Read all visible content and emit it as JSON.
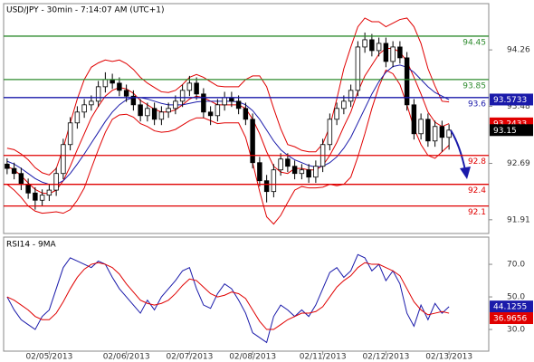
{
  "chart_data": [
    {
      "type": "candlestick",
      "title": "USD/JPY - 30min - 7:14:07 AM (UTC+1)",
      "categories": [
        null,
        null,
        null,
        null,
        null,
        null,
        "02/05/2013",
        null,
        null,
        null,
        null,
        null,
        null,
        null,
        null,
        null,
        null,
        "02/06/2013",
        null,
        null,
        null,
        null,
        null,
        null,
        null,
        null,
        "02/07/2013",
        null,
        null,
        null,
        null,
        null,
        null,
        null,
        null,
        "02/08/2013",
        null,
        null,
        null,
        null,
        null,
        null,
        null,
        null,
        null,
        "02/11/2013",
        null,
        null,
        null,
        null,
        null,
        null,
        null,
        null,
        "02/12/2013",
        null,
        null,
        null,
        null,
        null,
        null,
        null,
        null,
        "02/13/2013"
      ],
      "open": [
        92.68,
        92.62,
        92.55,
        92.4,
        92.28,
        92.18,
        92.25,
        92.32,
        92.55,
        92.95,
        93.25,
        93.4,
        93.5,
        93.55,
        93.75,
        93.85,
        93.8,
        93.7,
        93.62,
        93.5,
        93.35,
        93.45,
        93.3,
        93.4,
        93.45,
        93.55,
        93.7,
        93.8,
        93.65,
        93.4,
        93.35,
        93.5,
        93.6,
        93.55,
        93.45,
        93.3,
        92.7,
        92.45,
        92.3,
        92.6,
        92.75,
        92.65,
        92.55,
        92.6,
        92.5,
        92.65,
        92.95,
        93.3,
        93.45,
        93.55,
        93.7,
        94.3,
        94.4,
        94.25,
        94.35,
        94.1,
        94.3,
        94.15,
        93.5,
        93.1,
        93.3,
        93.0,
        93.2,
        93.05
      ],
      "high": [
        92.76,
        92.7,
        92.63,
        92.48,
        92.36,
        92.33,
        92.4,
        92.63,
        93.03,
        93.33,
        93.48,
        93.58,
        93.63,
        93.83,
        93.95,
        93.93,
        93.88,
        93.78,
        93.7,
        93.58,
        93.53,
        93.53,
        93.48,
        93.53,
        93.63,
        93.78,
        93.9,
        93.88,
        93.73,
        93.48,
        93.58,
        93.68,
        93.68,
        93.63,
        93.53,
        93.38,
        92.78,
        92.53,
        92.68,
        92.83,
        92.83,
        92.73,
        92.68,
        92.68,
        92.73,
        93.03,
        93.38,
        93.53,
        93.63,
        93.78,
        94.38,
        94.5,
        94.48,
        94.43,
        94.43,
        94.38,
        94.38,
        94.23,
        93.58,
        93.38,
        93.38,
        93.28,
        93.28,
        93.23
      ],
      "low": [
        92.54,
        92.47,
        92.32,
        92.2,
        92.05,
        92.1,
        92.17,
        92.24,
        92.47,
        92.87,
        93.17,
        93.32,
        93.42,
        93.47,
        93.67,
        93.72,
        93.62,
        93.54,
        93.42,
        93.27,
        93.27,
        93.22,
        93.22,
        93.32,
        93.37,
        93.47,
        93.62,
        93.57,
        93.32,
        93.22,
        93.27,
        93.42,
        93.47,
        93.37,
        93.22,
        92.62,
        92.37,
        92.15,
        92.22,
        92.52,
        92.57,
        92.47,
        92.47,
        92.42,
        92.42,
        92.57,
        92.87,
        93.22,
        93.37,
        93.47,
        93.62,
        94.22,
        94.17,
        94.17,
        94.02,
        94.02,
        94.07,
        93.42,
        93.02,
        93.02,
        92.92,
        92.92,
        92.85,
        92.88
      ],
      "close": [
        92.62,
        92.55,
        92.4,
        92.28,
        92.18,
        92.25,
        92.32,
        92.55,
        92.95,
        93.25,
        93.4,
        93.5,
        93.55,
        93.75,
        93.85,
        93.8,
        93.7,
        93.62,
        93.5,
        93.35,
        93.45,
        93.3,
        93.4,
        93.45,
        93.55,
        93.7,
        93.8,
        93.65,
        93.4,
        93.35,
        93.5,
        93.6,
        93.55,
        93.45,
        93.3,
        92.7,
        92.45,
        92.3,
        92.6,
        92.75,
        92.65,
        92.55,
        92.6,
        92.5,
        92.65,
        92.95,
        93.3,
        93.45,
        93.55,
        93.7,
        94.3,
        94.4,
        94.25,
        94.35,
        94.1,
        94.3,
        94.15,
        93.5,
        93.1,
        93.3,
        93.0,
        93.2,
        93.05,
        93.15
      ],
      "series": [
        {
          "color": "#e00000",
          "values": [
            92.9,
            92.88,
            92.82,
            92.74,
            92.63,
            92.56,
            92.53,
            92.62,
            92.9,
            93.25,
            93.58,
            93.85,
            94.02,
            94.08,
            94.12,
            94.1,
            94.12,
            94.07,
            93.99,
            93.88,
            93.8,
            93.74,
            93.68,
            93.67,
            93.7,
            93.78,
            93.88,
            93.92,
            93.88,
            93.82,
            93.76,
            93.75,
            93.75,
            93.75,
            93.85,
            93.9,
            93.9,
            93.75,
            93.45,
            93.17,
            92.95,
            92.92,
            92.87,
            92.85,
            92.85,
            92.96,
            93.2,
            93.58,
            94.0,
            94.3,
            94.58,
            94.7,
            94.65,
            94.65,
            94.58,
            94.63,
            94.68,
            94.7,
            94.58,
            94.35,
            94.0,
            93.76,
            93.55,
            93.54
          ]
        },
        {
          "color": "#e00000",
          "values": [
            92.65,
            92.6,
            92.52,
            92.42,
            92.33,
            92.28,
            92.27,
            92.32,
            92.45,
            92.65,
            92.88,
            93.1,
            93.32,
            93.48,
            93.62,
            93.7,
            93.74,
            93.72,
            93.66,
            93.56,
            93.5,
            93.44,
            93.4,
            93.4,
            93.43,
            93.5,
            93.58,
            93.62,
            93.6,
            93.55,
            93.5,
            93.5,
            93.5,
            93.5,
            93.45,
            93.3,
            93.1,
            92.85,
            92.65,
            92.57,
            92.55,
            92.62,
            92.62,
            92.6,
            92.6,
            92.66,
            92.8,
            92.98,
            93.2,
            93.4,
            93.68,
            93.9,
            94.05,
            94.2,
            94.28,
            94.28,
            94.23,
            94.1,
            93.88,
            93.65,
            93.4,
            93.26,
            93.2,
            93.24
          ]
        },
        {
          "color": "#e00000",
          "values": [
            92.4,
            92.32,
            92.22,
            92.1,
            92.03,
            92.0,
            92.01,
            92.02,
            92.0,
            92.05,
            92.18,
            92.35,
            92.62,
            92.88,
            93.12,
            93.3,
            93.36,
            93.37,
            93.33,
            93.24,
            93.2,
            93.14,
            93.12,
            93.13,
            93.16,
            93.22,
            93.28,
            93.32,
            93.32,
            93.28,
            93.24,
            93.25,
            93.25,
            93.25,
            93.05,
            92.7,
            92.3,
            91.95,
            91.85,
            91.97,
            92.15,
            92.32,
            92.37,
            92.35,
            92.35,
            92.36,
            92.4,
            92.38,
            92.4,
            92.5,
            92.78,
            93.1,
            93.45,
            93.75,
            93.98,
            93.93,
            93.78,
            93.5,
            93.18,
            92.95,
            92.8,
            92.76,
            92.85,
            92.94
          ]
        },
        {
          "color": "#1a1aaa",
          "values": [
            92.72,
            92.68,
            92.62,
            92.55,
            92.48,
            92.43,
            92.4,
            92.4,
            92.45,
            92.55,
            92.68,
            92.82,
            92.97,
            93.12,
            93.27,
            93.4,
            93.5,
            93.57,
            93.6,
            93.6,
            93.58,
            93.55,
            93.52,
            93.5,
            93.5,
            93.5,
            93.52,
            93.54,
            93.55,
            93.55,
            93.55,
            93.55,
            93.55,
            93.54,
            93.5,
            93.42,
            93.3,
            93.15,
            93.0,
            92.88,
            92.8,
            92.74,
            92.7,
            92.66,
            92.64,
            92.65,
            92.7,
            92.78,
            92.9,
            93.05,
            93.25,
            93.45,
            93.65,
            93.82,
            93.95,
            94.03,
            94.05,
            94.02,
            93.95,
            93.85,
            93.75,
            93.67,
            93.62,
            93.57
          ]
        }
      ],
      "levels": [
        94.45,
        93.85,
        93.6,
        92.8,
        92.4,
        92.1
      ],
      "level_colors": [
        "#2e8b2e",
        "#2e8b2e",
        "#1a1aaa",
        "#e00000",
        "#e00000",
        "#e00000"
      ],
      "markers": [
        93.5733,
        93.2433,
        93.15
      ],
      "marker_colors": [
        "#1a1aaa",
        "#e00000",
        "#000000"
      ],
      "ylim": [
        91.72,
        94.9
      ],
      "yticks": [
        94.26,
        93.48,
        92.69,
        91.91
      ]
    },
    {
      "type": "line",
      "title": "RSI14 - 9MA",
      "series": [
        {
          "color": "#1a1aaa",
          "values": [
            50,
            42,
            36,
            33,
            30,
            38,
            42,
            55,
            68,
            74,
            72,
            70,
            68,
            72,
            70,
            62,
            55,
            50,
            45,
            40,
            48,
            42,
            50,
            55,
            60,
            66,
            68,
            55,
            45,
            43,
            52,
            58,
            55,
            48,
            40,
            28,
            25,
            22,
            38,
            45,
            42,
            38,
            42,
            38,
            45,
            55,
            65,
            68,
            62,
            66,
            76,
            74,
            66,
            70,
            60,
            66,
            58,
            40,
            32,
            45,
            36,
            46,
            40,
            44
          ]
        },
        {
          "color": "#e00000",
          "values": [
            50,
            48,
            45,
            42,
            38,
            36,
            36,
            40,
            47,
            55,
            62,
            67,
            70,
            71,
            70,
            68,
            64,
            58,
            53,
            48,
            46,
            45,
            46,
            48,
            52,
            57,
            61,
            60,
            56,
            52,
            50,
            51,
            53,
            52,
            49,
            42,
            35,
            30,
            30,
            33,
            36,
            38,
            40,
            40,
            41,
            44,
            50,
            56,
            60,
            63,
            68,
            71,
            70,
            70,
            68,
            66,
            63,
            55,
            47,
            42,
            39,
            40,
            41,
            40
          ]
        }
      ],
      "markers": [
        44.1255,
        36.9656
      ],
      "marker_colors": [
        "#1a1aaa",
        "#e00000"
      ],
      "ylim": [
        16.7,
        86.7
      ],
      "yticks": [
        {
          "value": 70,
          "label": "70.0"
        },
        {
          "value": 50,
          "label": "50.0"
        },
        {
          "value": 30,
          "label": "30.0"
        }
      ]
    }
  ]
}
